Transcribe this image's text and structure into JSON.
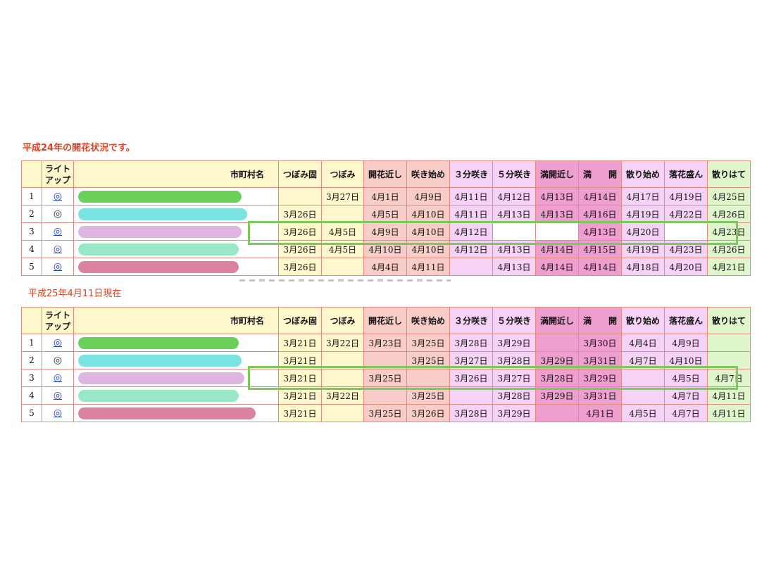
{
  "table1": {
    "title": "平成24年の開花状況です。",
    "headers": {
      "num": "",
      "light": "ライトアップ",
      "city": "市町村名",
      "c1": "つぼみ固",
      "c2": "つぼみ",
      "c3": "開花近し",
      "c4": "咲き始め",
      "c5": "３分咲き",
      "c6": "５分咲き",
      "c7": "満開近し",
      "c8": "満　　開",
      "c9": "散り始め",
      "c10": "落花盛ん",
      "c11": "散りはて"
    },
    "rows": [
      {
        "num": "1",
        "mark": "◎",
        "link": true,
        "bar": "#6ccf5a",
        "barw": 232,
        "cells": [
          "",
          "3月27日",
          "4月1日",
          "4月9日",
          "4月11日",
          "4月12日",
          "4月13日",
          "4月14日",
          "4月17日",
          "4月19日",
          "4月25日"
        ]
      },
      {
        "num": "2",
        "mark": "◎",
        "link": false,
        "bar": "#7ce3e4",
        "barw": 240,
        "cells": [
          "3月26日",
          "",
          "4月5日",
          "4月10日",
          "4月11日",
          "4月13日",
          "4月13日",
          "4月16日",
          "4月19日",
          "4月22日",
          "4月26日"
        ]
      },
      {
        "num": "3",
        "mark": "◎",
        "link": true,
        "bar": "#deb5e3",
        "barw": 232,
        "cells": [
          "3月26日",
          "4月5日",
          "4月9日",
          "4月10日",
          "4月12日",
          "",
          "",
          "4月13日",
          "4月20日",
          "",
          "4月23日"
        ]
      },
      {
        "num": "4",
        "mark": "◎",
        "link": true,
        "bar": "#98e8c8",
        "barw": 228,
        "cells": [
          "3月26日",
          "4月5日",
          "4月10日",
          "4月10日",
          "4月12日",
          "4月13日",
          "4月14日",
          "4月15日",
          "4月19日",
          "4月23日",
          "4月26日"
        ]
      },
      {
        "num": "5",
        "mark": "◎",
        "link": true,
        "bar": "#d9839f",
        "barw": 228,
        "cells": [
          "3月26日",
          "",
          "4月4日",
          "4月11日",
          "",
          "4月13日",
          "4月14日",
          "4月14日",
          "4月18日",
          "4月20日",
          "4月21日"
        ]
      }
    ]
  },
  "table2": {
    "title": "平成25年4月11日現在",
    "headers": {
      "num": "",
      "light": "ライトアップ",
      "city": "市町村名",
      "c1": "つぼみ固",
      "c2": "つぼみ",
      "c3": "開花近し",
      "c4": "咲き始め",
      "c5": "３分咲き",
      "c6": "５分咲き",
      "c7": "満開近し",
      "c8": "満　　開",
      "c9": "散り始め",
      "c10": "落花盛ん",
      "c11": "散りはて"
    },
    "rows": [
      {
        "num": "1",
        "mark": "◎",
        "link": true,
        "bar": "#6ccf5a",
        "barw": 228,
        "cells": [
          "3月21日",
          "3月22日",
          "3月23日",
          "3月25日",
          "3月28日",
          "3月29日",
          "",
          "3月30日",
          "4月4日",
          "4月9日",
          ""
        ]
      },
      {
        "num": "2",
        "mark": "◎",
        "link": false,
        "bar": "#7ce3e4",
        "barw": 232,
        "cells": [
          "3月21日",
          "",
          "",
          "3月25日",
          "3月27日",
          "3月28日",
          "3月29日",
          "3月31日",
          "4月7日",
          "4月10日",
          ""
        ]
      },
      {
        "num": "3",
        "mark": "◎",
        "link": true,
        "bar": "#deb5e3",
        "barw": 236,
        "cells": [
          "3月21日",
          "",
          "3月25日",
          "",
          "3月26日",
          "3月27日",
          "3月28日",
          "3月29日",
          "",
          "4月5日",
          "4月7日"
        ]
      },
      {
        "num": "4",
        "mark": "◎",
        "link": true,
        "bar": "#98e8c8",
        "barw": 228,
        "cells": [
          "3月21日",
          "3月22日",
          "",
          "3月25日",
          "",
          "3月28日",
          "3月29日",
          "3月31日",
          "",
          "4月7日",
          "4月11日"
        ]
      },
      {
        "num": "5",
        "mark": "◎",
        "link": true,
        "bar": "#d9839f",
        "barw": 252,
        "cells": [
          "3月21日",
          "",
          "3月25日",
          "3月26日",
          "3月28日",
          "3月29日",
          "",
          "4月1日",
          "4月5日",
          "4月7日",
          "4月11日"
        ]
      }
    ]
  },
  "colors": {
    "title": "#e0401e",
    "highlight": "#7dc95e",
    "link": "#1a3fd8"
  }
}
